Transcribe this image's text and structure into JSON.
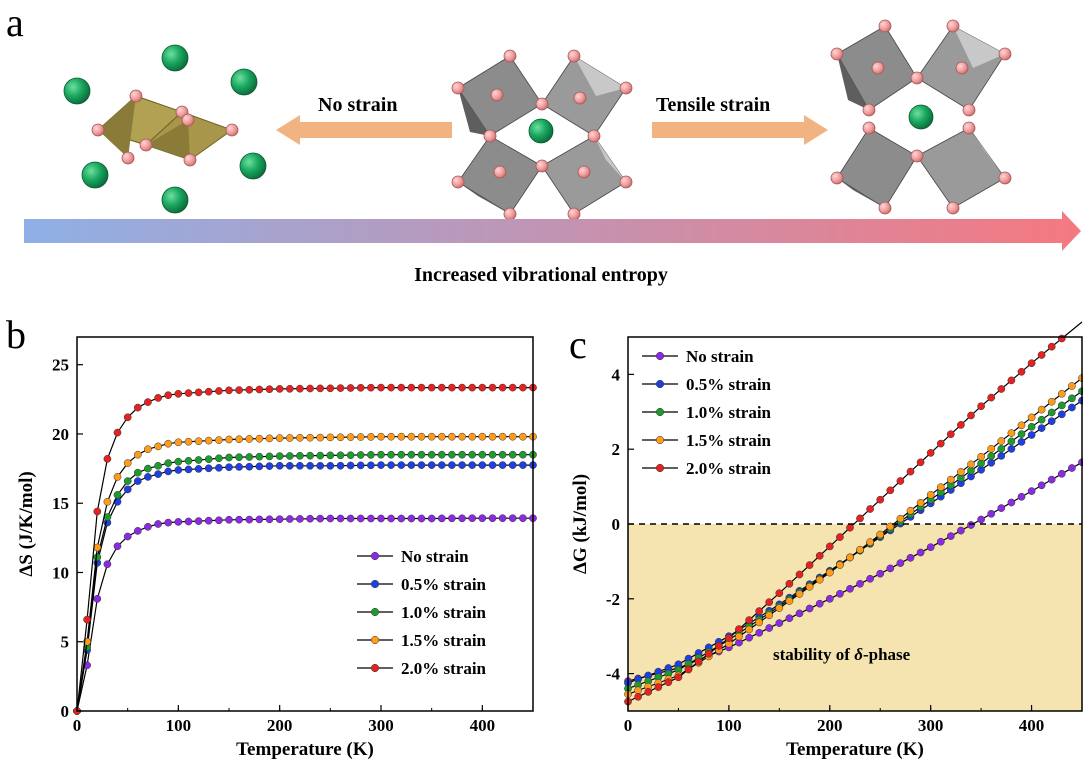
{
  "panel_a": {
    "letter": "a",
    "left_arrow_label": "No strain",
    "right_arrow_label": "Tensile strain",
    "banner_label": "Increased vibrational entropy",
    "colors": {
      "octahedron": "#7a7a7a",
      "delta_octahedron": "#a08f40",
      "corner_atom": "#f09a9a",
      "center_atom": "#1aa860",
      "arrow": "#f2b383",
      "banner_start": "#8fb0e6",
      "banner_end": "#f57880"
    }
  },
  "panel_b": {
    "letter": "b",
    "legend": [
      "No strain",
      "0.5% strain",
      "1.0% strain",
      "1.5% strain",
      "2.0% strain"
    ]
  },
  "panel_c": {
    "letter": "c",
    "legend": [
      "No strain",
      "0.5% strain",
      "1.0% strain",
      "1.5% strain",
      "2.0% strain"
    ],
    "region_label_prefix": "stability of ",
    "region_label_symbol": "δ",
    "region_label_suffix": "-phase",
    "region_color": "#f5e3b0"
  },
  "chart_data": [
    {
      "type": "line",
      "panel": "b",
      "xlabel": "Temperature (K)",
      "ylabel": "ΔS (J/K/mol)",
      "xlim": [
        0,
        450
      ],
      "ylim": [
        0,
        27
      ],
      "xticks": [
        0,
        100,
        200,
        300,
        400
      ],
      "yticks": [
        0,
        5,
        10,
        15,
        20,
        25
      ],
      "legend_position": "center-right",
      "x": [
        0,
        10,
        20,
        30,
        40,
        50,
        60,
        70,
        80,
        90,
        100,
        150,
        200,
        250,
        300,
        350,
        400,
        450
      ],
      "series": [
        {
          "name": "No strain",
          "color": "#8a2be2",
          "values": [
            0,
            3.3,
            8.1,
            10.6,
            11.9,
            12.6,
            13.0,
            13.3,
            13.5,
            13.6,
            13.65,
            13.8,
            13.85,
            13.9,
            13.9,
            13.9,
            13.92,
            13.92
          ]
        },
        {
          "name": "0.5% strain",
          "color": "#1f3fe0",
          "values": [
            0,
            4.4,
            10.7,
            13.6,
            15.1,
            16.0,
            16.6,
            16.9,
            17.1,
            17.3,
            17.4,
            17.6,
            17.7,
            17.7,
            17.75,
            17.75,
            17.75,
            17.75
          ]
        },
        {
          "name": "1.0% strain",
          "color": "#1f9a2f",
          "values": [
            0,
            4.6,
            11.1,
            14.0,
            15.6,
            16.6,
            17.2,
            17.5,
            17.7,
            17.9,
            18.0,
            18.3,
            18.4,
            18.45,
            18.5,
            18.5,
            18.5,
            18.5
          ]
        },
        {
          "name": "1.5% strain",
          "color": "#ff9a1a",
          "values": [
            0,
            5.0,
            11.8,
            15.1,
            16.9,
            17.9,
            18.5,
            18.9,
            19.1,
            19.3,
            19.4,
            19.6,
            19.7,
            19.75,
            19.8,
            19.8,
            19.8,
            19.8
          ]
        },
        {
          "name": "2.0% strain",
          "color": "#e52222",
          "values": [
            0,
            6.6,
            14.4,
            18.2,
            20.1,
            21.2,
            21.9,
            22.3,
            22.6,
            22.8,
            22.9,
            23.15,
            23.25,
            23.3,
            23.35,
            23.35,
            23.35,
            23.35
          ]
        }
      ]
    },
    {
      "type": "line",
      "panel": "c",
      "xlabel": "Temperature (K)",
      "ylabel": "ΔG (kJ/mol)",
      "xlim": [
        0,
        450
      ],
      "ylim": [
        -5,
        5
      ],
      "xticks": [
        0,
        100,
        200,
        300,
        400
      ],
      "yticks": [
        -4,
        -2,
        0,
        2,
        4
      ],
      "legend_position": "top-left",
      "reference_line": 0,
      "x": [
        0,
        50,
        100,
        150,
        200,
        250,
        300,
        350,
        400,
        450
      ],
      "series": [
        {
          "name": "No strain",
          "color": "#8a2be2",
          "values": [
            -4.2,
            -3.85,
            -3.3,
            -2.65,
            -2.0,
            -1.33,
            -0.62,
            0.12,
            0.88,
            1.65
          ]
        },
        {
          "name": "0.5% strain",
          "color": "#1f3fe0",
          "values": [
            -4.25,
            -3.75,
            -3.0,
            -2.15,
            -1.25,
            -0.35,
            0.55,
            1.45,
            2.38,
            3.3
          ]
        },
        {
          "name": "1.0% strain",
          "color": "#1f9a2f",
          "values": [
            -4.4,
            -3.9,
            -3.1,
            -2.2,
            -1.28,
            -0.32,
            0.65,
            1.62,
            2.6,
            3.55
          ]
        },
        {
          "name": "1.5% strain",
          "color": "#ff9a1a",
          "values": [
            -4.55,
            -4.05,
            -3.2,
            -2.25,
            -1.3,
            -0.28,
            0.78,
            1.8,
            2.85,
            3.9
          ]
        },
        {
          "name": "2.0% strain",
          "color": "#e52222",
          "values": [
            -4.75,
            -4.1,
            -3.05,
            -1.85,
            -0.6,
            0.65,
            1.9,
            3.15,
            4.3,
            5.4
          ]
        }
      ]
    }
  ]
}
